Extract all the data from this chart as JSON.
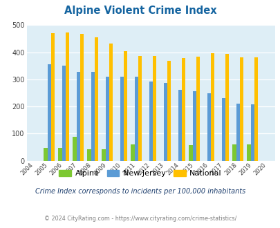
{
  "title": "Alpine Violent Crime Index",
  "years": [
    2004,
    2005,
    2006,
    2007,
    2008,
    2009,
    2010,
    2011,
    2012,
    2013,
    2014,
    2015,
    2016,
    2017,
    2018,
    2019,
    2020
  ],
  "alpine": [
    0,
    47,
    47,
    88,
    43,
    43,
    0,
    60,
    0,
    0,
    0,
    57,
    0,
    0,
    60,
    60,
    0
  ],
  "new_jersey": [
    0,
    355,
    350,
    328,
    328,
    311,
    309,
    309,
    292,
    288,
    261,
    256,
    248,
    231,
    211,
    208,
    0
  ],
  "national": [
    0,
    469,
    474,
    467,
    455,
    432,
    405,
    387,
    387,
    368,
    378,
    383,
    397,
    394,
    381,
    380,
    0
  ],
  "alpine_color": "#7dc832",
  "nj_color": "#5b9bd5",
  "national_color": "#ffc000",
  "plot_bg": "#deeef6",
  "ylim": [
    0,
    500
  ],
  "yticks": [
    0,
    100,
    200,
    300,
    400,
    500
  ],
  "subtitle": "Crime Index corresponds to incidents per 100,000 inhabitants",
  "footer": "© 2024 CityRating.com - https://www.cityrating.com/crime-statistics/",
  "title_color": "#1464a0",
  "subtitle_color": "#1e3f6e",
  "footer_color": "#808080",
  "legend_labels": [
    "Alpine",
    "New Jersey",
    "National"
  ]
}
